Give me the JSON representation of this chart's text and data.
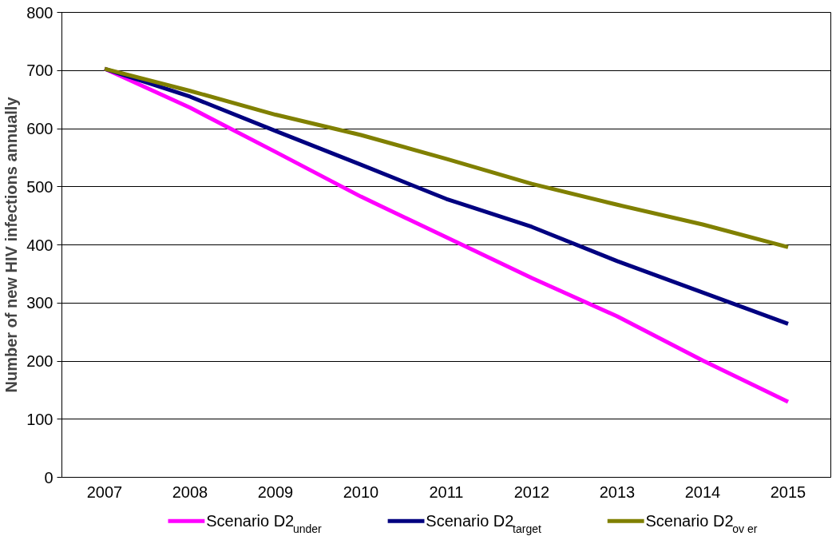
{
  "chart_data": {
    "type": "line",
    "ylabel": "Number of new HIV infections annually",
    "categories": [
      "2007",
      "2008",
      "2009",
      "2010",
      "2011",
      "2012",
      "2013",
      "2014",
      "2015"
    ],
    "series": [
      {
        "name": "Scenario D2$_{under}$",
        "color": "#ff00ff",
        "values": [
          703,
          636,
          560,
          483,
          413,
          343,
          277,
          201,
          130
        ]
      },
      {
        "name": "Scenario D2$_{target}$",
        "color": "#000080",
        "values": [
          703,
          655,
          596,
          538,
          479,
          431,
          372,
          318,
          264
        ]
      },
      {
        "name": "Scenario D2$_{ov er}$",
        "color": "#808000",
        "values": [
          703,
          665,
          624,
          589,
          548,
          505,
          469,
          435,
          396
        ]
      }
    ],
    "ylim": [
      0,
      800
    ],
    "yticks": [
      0,
      100,
      200,
      300,
      400,
      500,
      600,
      700,
      800
    ],
    "grid": "y",
    "legend": "bottom",
    "marker": "none",
    "line_style": "solid"
  }
}
